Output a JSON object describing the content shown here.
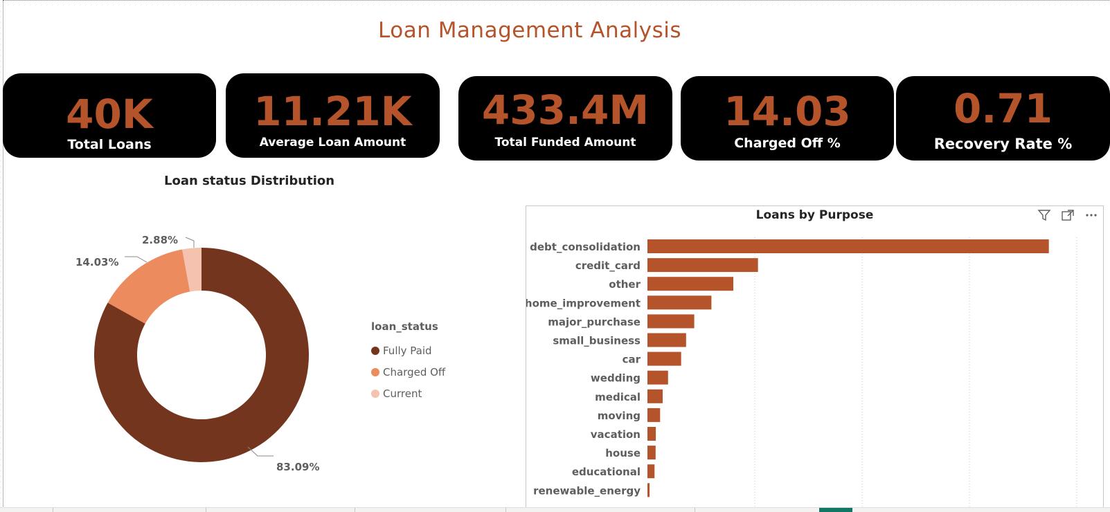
{
  "report": {
    "title": "Loan Management Analysis"
  },
  "kpis": [
    {
      "value": "40K",
      "label": "Total Loans"
    },
    {
      "value": "11.21K",
      "label": "Average Loan Amount"
    },
    {
      "value": "433.4M",
      "label": "Total Funded Amount"
    },
    {
      "value": "14.03",
      "label": "Charged Off %"
    },
    {
      "value": "0.71",
      "label": "Recovery Rate %"
    }
  ],
  "colors": {
    "accent": "#b5532a",
    "fully_paid": "#74351e",
    "charged_off": "#ec8b5e",
    "current": "#f4c2ae",
    "bar": "#b5532a",
    "kpi_bg": "#000000"
  },
  "status_chart": {
    "title": "Loan status Distribution",
    "legend_title": "loan_status",
    "legend": [
      "Fully Paid",
      "Charged Off",
      "Current"
    ],
    "labels": [
      "83.09%",
      "14.03%",
      "2.88%"
    ]
  },
  "purpose_chart": {
    "title": "Loans by Purpose",
    "icons": [
      "filter-icon",
      "focus-mode-icon",
      "more-options-icon"
    ]
  },
  "chart_data": [
    {
      "type": "pie",
      "title": "Loan status Distribution",
      "categories": [
        "Fully Paid",
        "Charged Off",
        "Current"
      ],
      "values": [
        83.09,
        14.03,
        2.88
      ],
      "legend_placement": "right"
    },
    {
      "type": "bar",
      "title": "Loans by Purpose",
      "orientation": "horizontal",
      "categories": [
        "debt_consolidation",
        "credit_card",
        "other",
        "home_improvement",
        "major_purchase",
        "small_business",
        "car",
        "wedding",
        "medical",
        "moving",
        "vacation",
        "house",
        "educational",
        "renewable_energy"
      ],
      "values": [
        18700,
        5150,
        4000,
        2980,
        2180,
        1800,
        1570,
        960,
        710,
        590,
        390,
        380,
        330,
        100
      ],
      "xlim": [
        0,
        20000
      ],
      "grid": true
    }
  ]
}
